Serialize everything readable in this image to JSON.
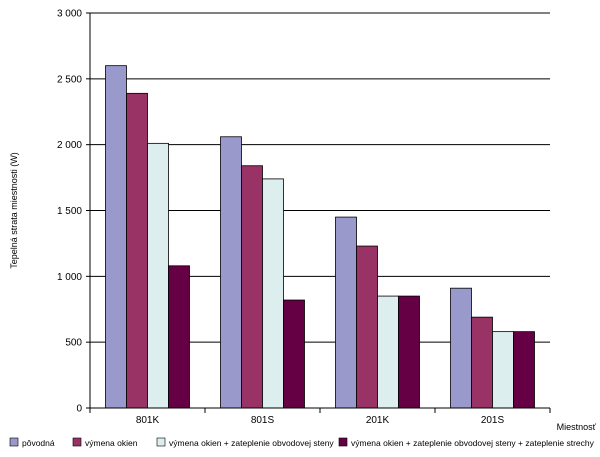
{
  "chart_data": {
    "type": "bar",
    "title": "",
    "xlabel": "Miestnosť",
    "ylabel": "Tepelná strata miestnosti (W)",
    "ylim": [
      0,
      3000
    ],
    "yticks": [
      "3 000",
      "2 500",
      "2 000",
      "1 500",
      "1 000",
      "500",
      "0"
    ],
    "ytick_values": [
      3000,
      2500,
      2000,
      1500,
      1000,
      500,
      0
    ],
    "grid": true,
    "legend_position": "bottom",
    "categories": [
      "801K",
      "801S",
      "201K",
      "201S"
    ],
    "series": [
      {
        "name": "pôvodná",
        "color": "#9999cc",
        "values": [
          2600,
          2060,
          1450,
          910
        ]
      },
      {
        "name": "výmena okien",
        "color": "#993366",
        "values": [
          2390,
          1840,
          1230,
          690
        ]
      },
      {
        "name": "výmena okien + zateplenie obvodovej steny",
        "color": "#ddeeee",
        "values": [
          2010,
          1740,
          850,
          580
        ]
      },
      {
        "name": "výmena okien + zateplenie obvodovej steny + zateplenie strechy",
        "color": "#660044",
        "values": [
          1080,
          820,
          850,
          580
        ]
      }
    ]
  }
}
